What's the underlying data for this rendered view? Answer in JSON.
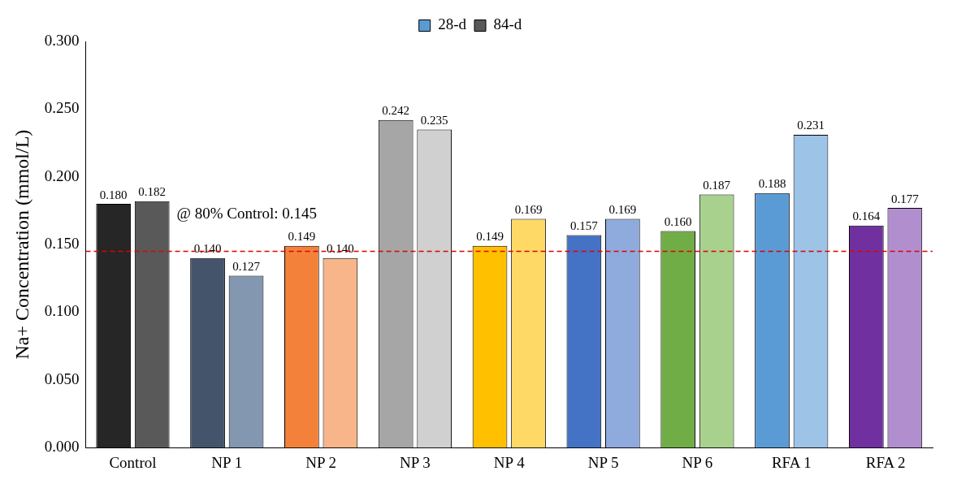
{
  "chart_data": {
    "type": "bar",
    "ylabel": "Na+ Concentration (mmol/L)",
    "categories": [
      "Control",
      "NP 1",
      "NP 2",
      "NP 3",
      "NP 4",
      "NP 5",
      "NP 6",
      "RFA 1",
      "RFA 2"
    ],
    "series": [
      {
        "name": "28-d",
        "color": "#5b9bd5",
        "values": [
          0.18,
          0.14,
          0.149,
          0.242,
          0.149,
          0.157,
          0.16,
          0.188,
          0.164
        ],
        "value_labels": [
          "0.180",
          "0.140",
          "0.149",
          "0.242",
          "0.149",
          "0.157",
          "0.160",
          "0.188",
          "0.164"
        ],
        "colors": [
          "#262626",
          "#44546a",
          "#f4813a",
          "#a6a6a6",
          "#ffc000",
          "#4472c4",
          "#70ad47",
          "#5b9bd5",
          "#7030a0"
        ]
      },
      {
        "name": "84-d",
        "color": "#595959",
        "values": [
          0.182,
          0.127,
          0.14,
          0.235,
          0.169,
          0.169,
          0.187,
          0.231,
          0.177
        ],
        "value_labels": [
          "0.182",
          "0.127",
          "0.140",
          "0.235",
          "0.169",
          "0.169",
          "0.187",
          "0.231",
          "0.177"
        ],
        "colors": [
          "#595959",
          "#8497b0",
          "#f8b58a",
          "#d0d0d0",
          "#ffd966",
          "#8faadc",
          "#a9d18e",
          "#9dc3e6",
          "#b18fcf"
        ]
      }
    ],
    "ylim": [
      0,
      0.3
    ],
    "yticks": [
      {
        "value": 0,
        "label": "0.000"
      },
      {
        "value": 0.05,
        "label": "0.050"
      },
      {
        "value": 0.1,
        "label": "0.100"
      },
      {
        "value": 0.15,
        "label": "0.150"
      },
      {
        "value": 0.2,
        "label": "0.200"
      },
      {
        "value": 0.25,
        "label": "0.250"
      },
      {
        "value": 0.3,
        "label": "0.300"
      }
    ],
    "grid": false,
    "legend": "top",
    "ref_lines": [
      {
        "axis": "y",
        "value": 0.145,
        "label": "@ 80% Control: 0.145",
        "color": "#e00000",
        "line_style": "dashed"
      }
    ]
  }
}
